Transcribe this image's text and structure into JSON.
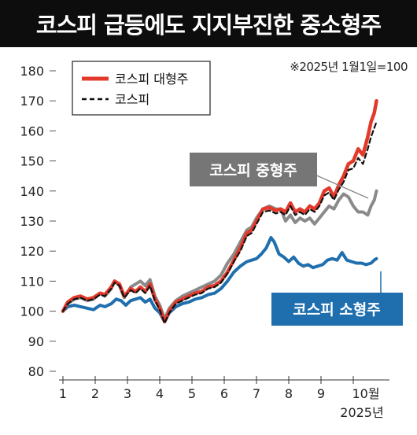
{
  "title": "코스피 급등에도 지지부진한 중소형주",
  "note": "※2025년 1월1일=100",
  "chart_data": {
    "type": "line",
    "xlabel": "",
    "ylabel": "",
    "ylim": [
      80,
      180
    ],
    "yticks": [
      80,
      90,
      100,
      110,
      120,
      130,
      140,
      150,
      160,
      170,
      180
    ],
    "xticks": [
      "1",
      "2",
      "3",
      "4",
      "5",
      "6",
      "7",
      "8",
      "9",
      "10월"
    ],
    "x_unit_label": "2025년",
    "legend": {
      "position": "top-left",
      "entries": [
        "코스피 대형주",
        "코스피"
      ]
    },
    "annotations": [
      "코스피 중형주",
      "코스피 소형주"
    ],
    "series": [
      {
        "name": "코스피 대형주",
        "color": "#e2392b",
        "style": "solid-thick",
        "points": [
          [
            1.0,
            100
          ],
          [
            1.15,
            103
          ],
          [
            1.35,
            104.5
          ],
          [
            1.55,
            105
          ],
          [
            1.75,
            104
          ],
          [
            1.95,
            104.5
          ],
          [
            2.15,
            106
          ],
          [
            2.3,
            105.5
          ],
          [
            2.5,
            108
          ],
          [
            2.6,
            110
          ],
          [
            2.75,
            109
          ],
          [
            2.9,
            105
          ],
          [
            3.1,
            107.5
          ],
          [
            3.25,
            106.5
          ],
          [
            3.4,
            108
          ],
          [
            3.55,
            106.5
          ],
          [
            3.7,
            109
          ],
          [
            3.85,
            104
          ],
          [
            4.0,
            101
          ],
          [
            4.15,
            96.5
          ],
          [
            4.3,
            100
          ],
          [
            4.5,
            103
          ],
          [
            4.7,
            104
          ],
          [
            4.9,
            105
          ],
          [
            5.1,
            106
          ],
          [
            5.3,
            106.5
          ],
          [
            5.5,
            108
          ],
          [
            5.7,
            108.5
          ],
          [
            5.9,
            110
          ],
          [
            6.1,
            113
          ],
          [
            6.3,
            117
          ],
          [
            6.5,
            121
          ],
          [
            6.7,
            126
          ],
          [
            6.85,
            127
          ],
          [
            7.0,
            130
          ],
          [
            7.2,
            134
          ],
          [
            7.4,
            134.5
          ],
          [
            7.6,
            133.5
          ],
          [
            7.75,
            134
          ],
          [
            7.9,
            133
          ],
          [
            8.05,
            136
          ],
          [
            8.2,
            133
          ],
          [
            8.35,
            134
          ],
          [
            8.5,
            133
          ],
          [
            8.65,
            135
          ],
          [
            8.8,
            134
          ],
          [
            8.95,
            136
          ],
          [
            9.1,
            140
          ],
          [
            9.25,
            141
          ],
          [
            9.4,
            138
          ],
          [
            9.55,
            142
          ],
          [
            9.7,
            145
          ],
          [
            9.85,
            149
          ],
          [
            10.0,
            150
          ],
          [
            10.15,
            154
          ],
          [
            10.3,
            152
          ],
          [
            10.45,
            158
          ],
          [
            10.55,
            163
          ],
          [
            10.65,
            166
          ],
          [
            10.72,
            170
          ]
        ]
      },
      {
        "name": "코스피",
        "color": "#111111",
        "style": "dashed",
        "points": [
          [
            1.0,
            100
          ],
          [
            1.15,
            102.5
          ],
          [
            1.35,
            104
          ],
          [
            1.55,
            104.5
          ],
          [
            1.75,
            103.5
          ],
          [
            1.95,
            104
          ],
          [
            2.15,
            105.5
          ],
          [
            2.3,
            105
          ],
          [
            2.5,
            107.5
          ],
          [
            2.6,
            109.5
          ],
          [
            2.75,
            108.5
          ],
          [
            2.9,
            104.5
          ],
          [
            3.1,
            107
          ],
          [
            3.25,
            106
          ],
          [
            3.4,
            107.5
          ],
          [
            3.55,
            106
          ],
          [
            3.7,
            108.5
          ],
          [
            3.85,
            103.5
          ],
          [
            4.0,
            100.5
          ],
          [
            4.15,
            96
          ],
          [
            4.3,
            99.5
          ],
          [
            4.5,
            102.5
          ],
          [
            4.7,
            103.5
          ],
          [
            4.9,
            104.5
          ],
          [
            5.1,
            105.5
          ],
          [
            5.3,
            106
          ],
          [
            5.5,
            107.5
          ],
          [
            5.7,
            108
          ],
          [
            5.9,
            109.5
          ],
          [
            6.1,
            112.5
          ],
          [
            6.3,
            116.5
          ],
          [
            6.5,
            120
          ],
          [
            6.7,
            125
          ],
          [
            6.85,
            126
          ],
          [
            7.0,
            129
          ],
          [
            7.2,
            133
          ],
          [
            7.4,
            133.5
          ],
          [
            7.6,
            132.5
          ],
          [
            7.75,
            133
          ],
          [
            7.9,
            132
          ],
          [
            8.05,
            135
          ],
          [
            8.2,
            132
          ],
          [
            8.35,
            133
          ],
          [
            8.5,
            132
          ],
          [
            8.65,
            134
          ],
          [
            8.8,
            133
          ],
          [
            8.95,
            135
          ],
          [
            9.1,
            138.5
          ],
          [
            9.25,
            139.5
          ],
          [
            9.4,
            137
          ],
          [
            9.55,
            140.5
          ],
          [
            9.7,
            143
          ],
          [
            9.85,
            147
          ],
          [
            10.0,
            147.5
          ],
          [
            10.15,
            151
          ],
          [
            10.3,
            149
          ],
          [
            10.45,
            154
          ],
          [
            10.55,
            158
          ],
          [
            10.65,
            161
          ],
          [
            10.72,
            163
          ]
        ]
      },
      {
        "name": "코스피 중형주",
        "color": "#8a8a8a",
        "style": "solid",
        "points": [
          [
            1.0,
            100
          ],
          [
            1.15,
            102.5
          ],
          [
            1.35,
            104
          ],
          [
            1.55,
            104.5
          ],
          [
            1.75,
            103.5
          ],
          [
            1.95,
            104
          ],
          [
            2.15,
            106
          ],
          [
            2.3,
            105
          ],
          [
            2.5,
            107.5
          ],
          [
            2.6,
            110
          ],
          [
            2.75,
            108.5
          ],
          [
            2.9,
            104.5
          ],
          [
            3.1,
            108
          ],
          [
            3.25,
            109
          ],
          [
            3.4,
            110
          ],
          [
            3.55,
            108.5
          ],
          [
            3.7,
            110.5
          ],
          [
            3.85,
            105
          ],
          [
            4.0,
            102
          ],
          [
            4.15,
            97.5
          ],
          [
            4.3,
            101
          ],
          [
            4.5,
            103.5
          ],
          [
            4.7,
            105
          ],
          [
            4.9,
            106
          ],
          [
            5.1,
            107
          ],
          [
            5.3,
            108
          ],
          [
            5.5,
            109
          ],
          [
            5.7,
            110
          ],
          [
            5.9,
            112
          ],
          [
            6.1,
            116
          ],
          [
            6.3,
            119
          ],
          [
            6.5,
            123
          ],
          [
            6.7,
            127
          ],
          [
            6.85,
            128
          ],
          [
            7.0,
            131
          ],
          [
            7.2,
            134
          ],
          [
            7.4,
            135
          ],
          [
            7.6,
            134
          ],
          [
            7.75,
            134
          ],
          [
            7.9,
            130
          ],
          [
            8.05,
            132
          ],
          [
            8.2,
            129.5
          ],
          [
            8.35,
            131
          ],
          [
            8.5,
            130
          ],
          [
            8.65,
            131
          ],
          [
            8.8,
            129
          ],
          [
            8.95,
            131
          ],
          [
            9.1,
            133
          ],
          [
            9.25,
            135
          ],
          [
            9.4,
            134
          ],
          [
            9.55,
            137
          ],
          [
            9.7,
            139
          ],
          [
            9.85,
            138
          ],
          [
            10.0,
            135
          ],
          [
            10.15,
            133
          ],
          [
            10.3,
            133
          ],
          [
            10.45,
            132
          ],
          [
            10.55,
            135
          ],
          [
            10.65,
            137
          ],
          [
            10.72,
            140
          ]
        ]
      },
      {
        "name": "코스피 소형주",
        "color": "#1f6fae",
        "style": "solid",
        "points": [
          [
            1.0,
            100
          ],
          [
            1.15,
            101.5
          ],
          [
            1.35,
            102
          ],
          [
            1.55,
            101.5
          ],
          [
            1.75,
            101
          ],
          [
            1.95,
            100.5
          ],
          [
            2.15,
            102
          ],
          [
            2.3,
            101.5
          ],
          [
            2.5,
            102.5
          ],
          [
            2.65,
            104
          ],
          [
            2.8,
            103.5
          ],
          [
            2.95,
            102
          ],
          [
            3.1,
            103.5
          ],
          [
            3.25,
            104
          ],
          [
            3.4,
            104.5
          ],
          [
            3.55,
            103
          ],
          [
            3.7,
            104
          ],
          [
            3.85,
            101
          ],
          [
            4.0,
            99.5
          ],
          [
            4.15,
            96.5
          ],
          [
            4.3,
            99.5
          ],
          [
            4.5,
            101.5
          ],
          [
            4.7,
            102.5
          ],
          [
            4.9,
            103
          ],
          [
            5.1,
            104
          ],
          [
            5.3,
            104.5
          ],
          [
            5.5,
            105.5
          ],
          [
            5.7,
            106
          ],
          [
            5.9,
            107.5
          ],
          [
            6.1,
            110
          ],
          [
            6.3,
            113
          ],
          [
            6.5,
            115
          ],
          [
            6.7,
            116.5
          ],
          [
            6.85,
            117
          ],
          [
            7.0,
            117.5
          ],
          [
            7.15,
            119
          ],
          [
            7.3,
            121
          ],
          [
            7.45,
            124.5
          ],
          [
            7.55,
            123
          ],
          [
            7.7,
            119
          ],
          [
            7.85,
            118
          ],
          [
            8.0,
            116.5
          ],
          [
            8.15,
            118
          ],
          [
            8.3,
            116
          ],
          [
            8.45,
            115
          ],
          [
            8.6,
            115.5
          ],
          [
            8.75,
            114.5
          ],
          [
            8.9,
            115
          ],
          [
            9.05,
            115.5
          ],
          [
            9.2,
            117
          ],
          [
            9.35,
            117.5
          ],
          [
            9.5,
            117
          ],
          [
            9.65,
            119.5
          ],
          [
            9.8,
            117
          ],
          [
            9.95,
            116.5
          ],
          [
            10.1,
            116
          ],
          [
            10.25,
            116
          ],
          [
            10.4,
            115.5
          ],
          [
            10.55,
            116
          ],
          [
            10.65,
            117
          ],
          [
            10.72,
            117.5
          ]
        ]
      }
    ]
  }
}
